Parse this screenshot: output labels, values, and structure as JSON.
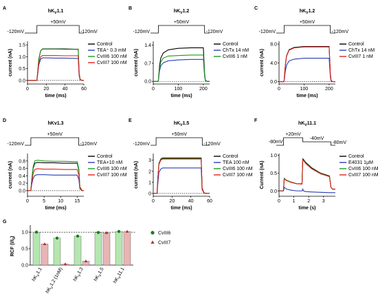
{
  "chart_data": [
    {
      "type": "line",
      "label": "A",
      "title": [
        "hK",
        "V",
        "1.1"
      ],
      "protocol": [
        "-120mV",
        "+50mV",
        "-120mV"
      ],
      "xlabel": "time (ms)",
      "ylabel": "current (nA)",
      "zero_line": true,
      "xlim": [
        0,
        60
      ],
      "xticks": [
        0,
        20,
        40,
        60
      ],
      "ylim": [
        -0.15,
        1.65
      ],
      "yticks": [
        {
          "value": 0,
          "label": "0.0"
        },
        {
          "value": 0.5,
          "label": "0.5"
        },
        {
          "value": 1,
          "label": "1.0"
        },
        {
          "value": 1.5,
          "label": "1.5"
        }
      ],
      "x": [
        0,
        9,
        10,
        11,
        12,
        14,
        16,
        20,
        30,
        40,
        50,
        54,
        55,
        56,
        58,
        60
      ],
      "series": [
        {
          "name": "Control",
          "color": "#000000",
          "values": [
            0,
            0,
            0,
            0.4,
            0.9,
            1.25,
            1.33,
            1.33,
            1.33,
            1.33,
            1.32,
            1.32,
            0.3,
            0.05,
            0,
            0
          ]
        },
        {
          "name": "TEA⁺ 0.3 mM",
          "color": "#2a3db5",
          "values": [
            0,
            0,
            0,
            0.3,
            0.65,
            0.9,
            0.95,
            0.95,
            0.94,
            0.94,
            0.93,
            0.93,
            0.2,
            0.03,
            0,
            0
          ]
        },
        {
          "name": "CvIII6 100 nM",
          "color": "#1a9a1a",
          "values": [
            0,
            0,
            0,
            0.4,
            0.9,
            1.24,
            1.32,
            1.32,
            1.32,
            1.31,
            1.31,
            1.31,
            0.3,
            0.05,
            0,
            0
          ]
        },
        {
          "name": "CvIII7 100 nM",
          "color": "#e0201a",
          "values": [
            0,
            0,
            0,
            0.35,
            0.75,
            1.0,
            1.05,
            1.05,
            1.05,
            1.04,
            1.04,
            1.04,
            0.25,
            0.04,
            0,
            0
          ]
        }
      ]
    },
    {
      "type": "line",
      "label": "B",
      "title": [
        "hK",
        "V",
        "1.2"
      ],
      "protocol": [
        "-120mV",
        "+50mV",
        "-120mV"
      ],
      "xlabel": "time (ms)",
      "ylabel": "current (nA)",
      "zero_line": true,
      "xlim": [
        0,
        225
      ],
      "xticks": [
        0,
        100,
        200
      ],
      "ylim": [
        -0.1,
        1.55
      ],
      "yticks": [
        {
          "value": 0,
          "label": "0.0"
        },
        {
          "value": 0.7,
          "label": "0.7"
        },
        {
          "value": 1.4,
          "label": "1.4"
        }
      ],
      "x": [
        0,
        18,
        20,
        25,
        30,
        40,
        60,
        100,
        150,
        200,
        205,
        208,
        215,
        225
      ],
      "series": [
        {
          "name": "Control",
          "color": "#000000",
          "values": [
            0,
            0,
            0,
            0.6,
            0.9,
            1.1,
            1.22,
            1.28,
            1.3,
            1.3,
            0.3,
            0.05,
            0,
            0
          ]
        },
        {
          "name": "ChTx 14 nM",
          "color": "#2a3db5",
          "values": [
            0,
            0,
            0,
            0.4,
            0.6,
            0.72,
            0.8,
            0.83,
            0.85,
            0.85,
            0.2,
            0.03,
            0,
            0
          ]
        },
        {
          "name": "CvIII6 1 nM",
          "color": "#1a9a1a",
          "values": [
            0,
            0,
            0,
            0.5,
            0.75,
            0.9,
            0.98,
            1.0,
            1.02,
            1.02,
            0.25,
            0.04,
            0,
            0
          ]
        }
      ]
    },
    {
      "type": "line",
      "label": "C",
      "title": [
        "hK",
        "V",
        "1.2"
      ],
      "protocol": [
        "-120mV",
        "+50mV",
        "-120mV"
      ],
      "xlabel": "time (ms)",
      "ylabel": "current (nA)",
      "zero_line": true,
      "xlim": [
        0,
        225
      ],
      "xticks": [
        0,
        100,
        200
      ],
      "ylim": [
        -0.5,
        8.6
      ],
      "yticks": [
        {
          "value": 0,
          "label": "0.0"
        },
        {
          "value": 4,
          "label": "4.0"
        },
        {
          "value": 8,
          "label": "8.0"
        }
      ],
      "x": [
        0,
        18,
        20,
        25,
        30,
        40,
        60,
        100,
        150,
        200,
        205,
        208,
        215,
        225
      ],
      "series": [
        {
          "name": "Control",
          "color": "#000000",
          "values": [
            0,
            0,
            0,
            3.5,
            5.5,
            6.8,
            7.3,
            7.5,
            7.5,
            7.5,
            1.5,
            0.2,
            0,
            0
          ]
        },
        {
          "name": "ChTx 14 nM",
          "color": "#2a3db5",
          "values": [
            0,
            0,
            0,
            2.2,
            3.5,
            4.4,
            4.8,
            5.0,
            5.0,
            5.0,
            1.0,
            0.1,
            0,
            0
          ]
        },
        {
          "name": "CvIII7 1 nM",
          "color": "#e0201a",
          "values": [
            0,
            0,
            0,
            3.4,
            5.4,
            6.7,
            7.2,
            7.4,
            7.4,
            7.4,
            1.5,
            0.2,
            0,
            0
          ]
        }
      ]
    },
    {
      "type": "line",
      "label": "D",
      "title": "hKv1.3",
      "protocol": [
        "-120mV",
        "+50mV",
        "-120mV"
      ],
      "xlabel": "time (ms)",
      "ylabel": "current (nA)",
      "zero_line": true,
      "xlim": [
        0,
        17
      ],
      "xticks": [
        0,
        5,
        10,
        15
      ],
      "ylim": [
        -0.15,
        1.0
      ],
      "yticks": [
        {
          "value": 0,
          "label": "0.0"
        },
        {
          "value": 0.2,
          "label": "0.2"
        },
        {
          "value": 0.4,
          "label": "0.4"
        },
        {
          "value": 0.6,
          "label": "0.6"
        },
        {
          "value": 0.8,
          "label": "0.8"
        }
      ],
      "x": [
        0,
        0.8,
        1,
        1.3,
        1.7,
        2.2,
        3,
        5,
        8,
        11,
        14,
        15,
        15.5,
        15.8,
        16.5,
        17
      ],
      "series": [
        {
          "name": "Control",
          "color": "#000000",
          "values": [
            0,
            0,
            0,
            0.3,
            0.6,
            0.74,
            0.76,
            0.75,
            0.75,
            0.74,
            0.74,
            0.74,
            0.55,
            0.1,
            0,
            0
          ]
        },
        {
          "name": "TEA+10 nM",
          "color": "#2a3db5",
          "values": [
            0,
            0,
            0,
            0.18,
            0.33,
            0.41,
            0.43,
            0.43,
            0.42,
            0.42,
            0.42,
            0.42,
            0.3,
            0.05,
            0,
            0
          ]
        },
        {
          "name": "CvIII6 100 nM",
          "color": "#1a9a1a",
          "values": [
            0,
            0,
            0,
            0.32,
            0.64,
            0.8,
            0.82,
            0.8,
            0.79,
            0.79,
            0.78,
            0.78,
            0.58,
            0.1,
            0,
            0
          ]
        },
        {
          "name": "CvIII7 100 nM",
          "color": "#e0201a",
          "values": [
            0,
            0,
            0,
            0.24,
            0.46,
            0.57,
            0.59,
            0.58,
            0.58,
            0.57,
            0.57,
            0.57,
            0.42,
            0.07,
            0,
            0
          ]
        }
      ]
    },
    {
      "type": "line",
      "label": "E",
      "title": [
        "hK",
        "V",
        "1.5"
      ],
      "protocol": [
        "-120mV",
        "+50mV",
        "-120mV"
      ],
      "xlabel": "time (ms)",
      "ylabel": "current (nA)",
      "zero_line": true,
      "xlim": [
        0,
        60
      ],
      "xticks": [
        0,
        20,
        40,
        60
      ],
      "ylim": [
        -0.25,
        3.6
      ],
      "yticks": [
        0,
        1,
        2,
        3
      ],
      "x": [
        0,
        3,
        4,
        5,
        6,
        8,
        10,
        20,
        30,
        40,
        50,
        51,
        52,
        54,
        57,
        60
      ],
      "series": [
        {
          "name": "Control",
          "color": "#000000",
          "values": [
            0,
            0,
            0,
            1.5,
            2.7,
            3.1,
            3.2,
            3.2,
            3.2,
            3.2,
            3.2,
            3.2,
            0.5,
            0.05,
            0,
            0
          ]
        },
        {
          "name": "TEA 100 nM",
          "color": "#2a3db5",
          "values": [
            0,
            0,
            0,
            1.0,
            1.9,
            2.2,
            2.3,
            2.3,
            2.3,
            2.3,
            2.3,
            2.3,
            0.35,
            0.04,
            0,
            0
          ]
        },
        {
          "name": "CvIII6 100 nM",
          "color": "#1a9a1a",
          "values": [
            0,
            0,
            0,
            1.5,
            2.65,
            3.05,
            3.15,
            3.15,
            3.15,
            3.15,
            3.15,
            3.15,
            0.5,
            0.05,
            0,
            0
          ]
        },
        {
          "name": "CvIII7 100 nM",
          "color": "#e0201a",
          "values": [
            0,
            0,
            0,
            1.45,
            2.6,
            3.0,
            3.1,
            3.1,
            3.1,
            3.1,
            3.1,
            3.1,
            0.48,
            0.05,
            0,
            0
          ]
        }
      ]
    },
    {
      "type": "line",
      "label": "F",
      "title": [
        "hK",
        "V",
        "11.1"
      ],
      "protocol": [
        "-80mV",
        "+20mV",
        "-40mV",
        "-80mV"
      ],
      "xlabel": "time (s)",
      "ylabel": "Current (nA)",
      "zero_line": false,
      "xlim": [
        0,
        3.8
      ],
      "xticks": [
        0,
        1,
        2,
        3
      ],
      "ylim": [
        -0.15,
        1.05
      ],
      "yticks": [
        {
          "value": 0,
          "label": "0.0"
        },
        {
          "value": 0.5,
          "label": "0.5"
        },
        {
          "value": 1,
          "label": "1.0"
        }
      ],
      "x": [
        0,
        0.3,
        0.35,
        0.5,
        0.8,
        1.2,
        1.55,
        1.6,
        1.65,
        1.8,
        2.2,
        2.8,
        3.4,
        3.5,
        3.6,
        3.8
      ],
      "series": [
        {
          "name": "Control",
          "color": "#000000",
          "values": [
            0,
            0,
            0.35,
            0.3,
            0.25,
            0.2,
            0.2,
            0.9,
            0.88,
            0.8,
            0.65,
            0.5,
            0.42,
            0.1,
            0.05,
            0.05
          ]
        },
        {
          "name": "E4031 1μM",
          "color": "#2a3db5",
          "values": [
            0,
            0,
            0.1,
            0.05,
            0.02,
            0,
            0,
            0.05,
            0,
            -0.02,
            -0.03,
            -0.04,
            -0.05,
            -0.05,
            -0.05,
            -0.05
          ]
        },
        {
          "name": "CvIII6 100 nM",
          "color": "#1a9a1a",
          "values": [
            0,
            0,
            0.34,
            0.3,
            0.25,
            0.2,
            0.2,
            0.88,
            0.86,
            0.78,
            0.63,
            0.49,
            0.41,
            0.1,
            0.05,
            0.05
          ]
        },
        {
          "name": "CvIII7 100 nM",
          "color": "#e0201a",
          "values": [
            0,
            0,
            0.33,
            0.29,
            0.24,
            0.2,
            0.19,
            0.87,
            0.85,
            0.77,
            0.62,
            0.48,
            0.4,
            0.1,
            0.05,
            0.05
          ]
        }
      ]
    },
    {
      "type": "bar",
      "label": "G",
      "ylabel": [
        "RCF (I/I",
        "0",
        ")"
      ],
      "reference_line": 1,
      "ylim": [
        0,
        1.15
      ],
      "yticks": [
        {
          "value": 0,
          "label": "0.0"
        },
        {
          "value": 0.5,
          "label": "0.5"
        },
        {
          "value": 1,
          "label": "1.0"
        }
      ],
      "categories": [
        [
          "hK",
          "V",
          "1.1"
        ],
        [
          "hK",
          "V",
          "1.2 (1nM)"
        ],
        [
          "hK",
          "V",
          "1.3"
        ],
        [
          "hK",
          "V",
          "1.5"
        ],
        [
          "hK",
          "V",
          "11.1"
        ]
      ],
      "series": [
        {
          "name": "CvIII6",
          "color": "#b5e6b0",
          "marker": "circle",
          "marker_color": "#1f7a1f",
          "values": [
            1.0,
            0.82,
            0.88,
            0.99,
            1.02
          ]
        },
        {
          "name": "CvIII7",
          "color": "#e8b4b4",
          "marker": "triangle",
          "marker_color": "#a83232",
          "values": [
            0.64,
            0.03,
            0.12,
            0.98,
            1.02
          ]
        }
      ]
    }
  ]
}
